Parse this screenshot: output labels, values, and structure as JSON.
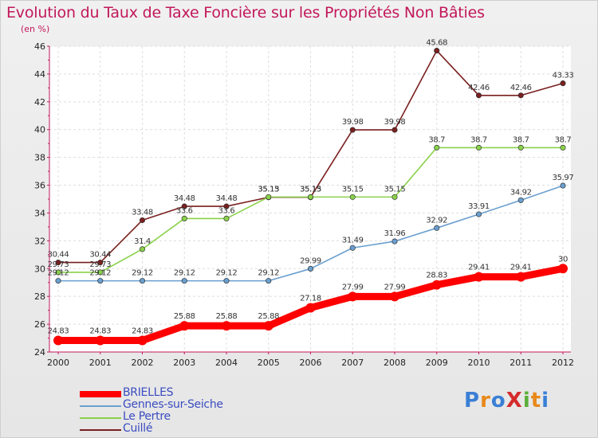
{
  "title": "Evolution du Taux de Taxe Foncière sur les Propriétés Non Bâties",
  "unit_label": "(en %)",
  "logo": {
    "text": "ProXiti",
    "colors": [
      "#3a7fd5",
      "#e8891a",
      "#3a7fd5",
      "#d52b2b",
      "#5cae3a",
      "#e8891a",
      "#3a7fd5"
    ]
  },
  "chart_data": {
    "type": "line",
    "title": "Evolution du Taux de Taxe Foncière sur les Propriétés Non Bâties",
    "ylabel": "(en %)",
    "xlabel": "",
    "x": [
      "2000",
      "2001",
      "2002",
      "2003",
      "2004",
      "2005",
      "2006",
      "2007",
      "2008",
      "2009",
      "2010",
      "2011",
      "2012"
    ],
    "ylim": [
      24,
      46
    ],
    "yticks": [
      24,
      26,
      28,
      30,
      32,
      34,
      36,
      38,
      40,
      42,
      44,
      46
    ],
    "grid": true,
    "legend_position": "bottom-left",
    "series": [
      {
        "name": "Cuillé",
        "color": "#7a1f1f",
        "values": [
          30.44,
          30.44,
          33.48,
          34.48,
          34.48,
          35.13,
          35.13,
          39.98,
          39.98,
          45.68,
          42.46,
          42.46,
          43.33
        ],
        "labels": [
          "30.44",
          "30.44",
          "33.48",
          "34.48",
          "34.48",
          "35.13",
          "35.13",
          "39.98",
          "39.98",
          "45.68",
          "42.46",
          "42.46",
          "43.33"
        ]
      },
      {
        "name": "Le Pertre",
        "color": "#8ad24a",
        "values": [
          29.73,
          29.73,
          31.4,
          33.6,
          33.6,
          35.15,
          35.15,
          35.15,
          35.15,
          38.7,
          38.7,
          38.7,
          38.7
        ],
        "labels": [
          "29.73",
          "29.73",
          "31.4",
          "33.6",
          "33.6",
          "35.15",
          "35.15",
          "35.15",
          "35.15",
          "38.7",
          "38.7",
          "38.7",
          "38.7"
        ]
      },
      {
        "name": "Gennes-sur-Seiche",
        "color": "#6a9fcf",
        "values": [
          29.12,
          29.12,
          29.12,
          29.12,
          29.12,
          29.12,
          29.99,
          31.49,
          31.96,
          32.92,
          33.91,
          34.92,
          35.97
        ],
        "labels": [
          "29.12",
          "29.12",
          "29.12",
          "29.12",
          "29.12",
          "29.12",
          "29.99",
          "31.49",
          "31.96",
          "32.92",
          "33.91",
          "34.92",
          "35.97"
        ]
      },
      {
        "name": "BRIELLES",
        "color": "#ff0000",
        "values": [
          24.83,
          24.83,
          24.83,
          25.88,
          25.88,
          25.88,
          27.18,
          27.99,
          27.99,
          28.83,
          29.41,
          29.41,
          30
        ],
        "labels": [
          "24.83",
          "24.83",
          "24.83",
          "25.88",
          "25.88",
          "25.88",
          "27.18",
          "27.99",
          "27.99",
          "28.83",
          "29.41",
          "29.41",
          "30"
        ]
      }
    ],
    "legend": [
      "BRIELLES",
      "Gennes-sur-Seiche",
      "Le Pertre",
      "Cuillé"
    ]
  }
}
